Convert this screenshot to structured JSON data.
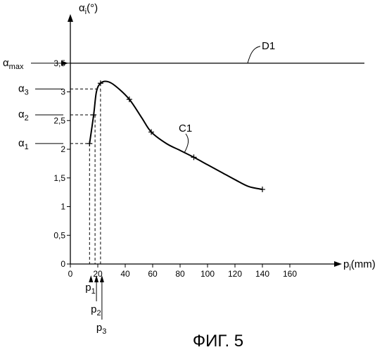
{
  "chart_data": {
    "type": "line",
    "xlabel": "p",
    "xlabel_sub": "i",
    "xlabel_unit": "(mm)",
    "ylabel": "α",
    "ylabel_sub": "i",
    "ylabel_unit": "(°)",
    "xlim": [
      0,
      170
    ],
    "ylim": [
      0,
      4.2
    ],
    "x_ticks": [
      "0",
      "20",
      "40",
      "60",
      "80",
      "100",
      "120",
      "140",
      "160"
    ],
    "y_ticks": [
      "0",
      "0,5",
      "1",
      "1,5",
      "2",
      "2,5",
      "3",
      "3,5"
    ],
    "series": [
      {
        "name": "C1",
        "x": [
          14,
          17,
          19,
          22,
          27,
          33,
          43,
          52,
          59,
          70,
          80,
          90,
          100,
          110,
          120,
          130,
          140
        ],
        "y": [
          2.1,
          2.6,
          3.0,
          3.15,
          3.18,
          3.1,
          2.87,
          2.55,
          2.3,
          2.1,
          1.98,
          1.86,
          1.73,
          1.6,
          1.47,
          1.35,
          1.3
        ]
      }
    ],
    "markers_x": [
      14,
      17,
      22,
      43,
      59,
      90,
      140
    ],
    "hline": {
      "name": "D1",
      "y": 3.5
    },
    "guides": [
      {
        "p": "p",
        "p_sub": "1",
        "x": 14,
        "a": "α",
        "a_sub": "1",
        "y": 2.1
      },
      {
        "p": "p",
        "p_sub": "2",
        "x": 18,
        "a": "α",
        "a_sub": "2",
        "y": 2.6
      },
      {
        "p": "p",
        "p_sub": "3",
        "x": 22,
        "a": "α",
        "a_sub": "3",
        "y": 3.05
      }
    ],
    "alpha_max": {
      "a": "α",
      "a_sub": "max",
      "y": 3.5
    }
  },
  "caption": "ФИГ. 5"
}
